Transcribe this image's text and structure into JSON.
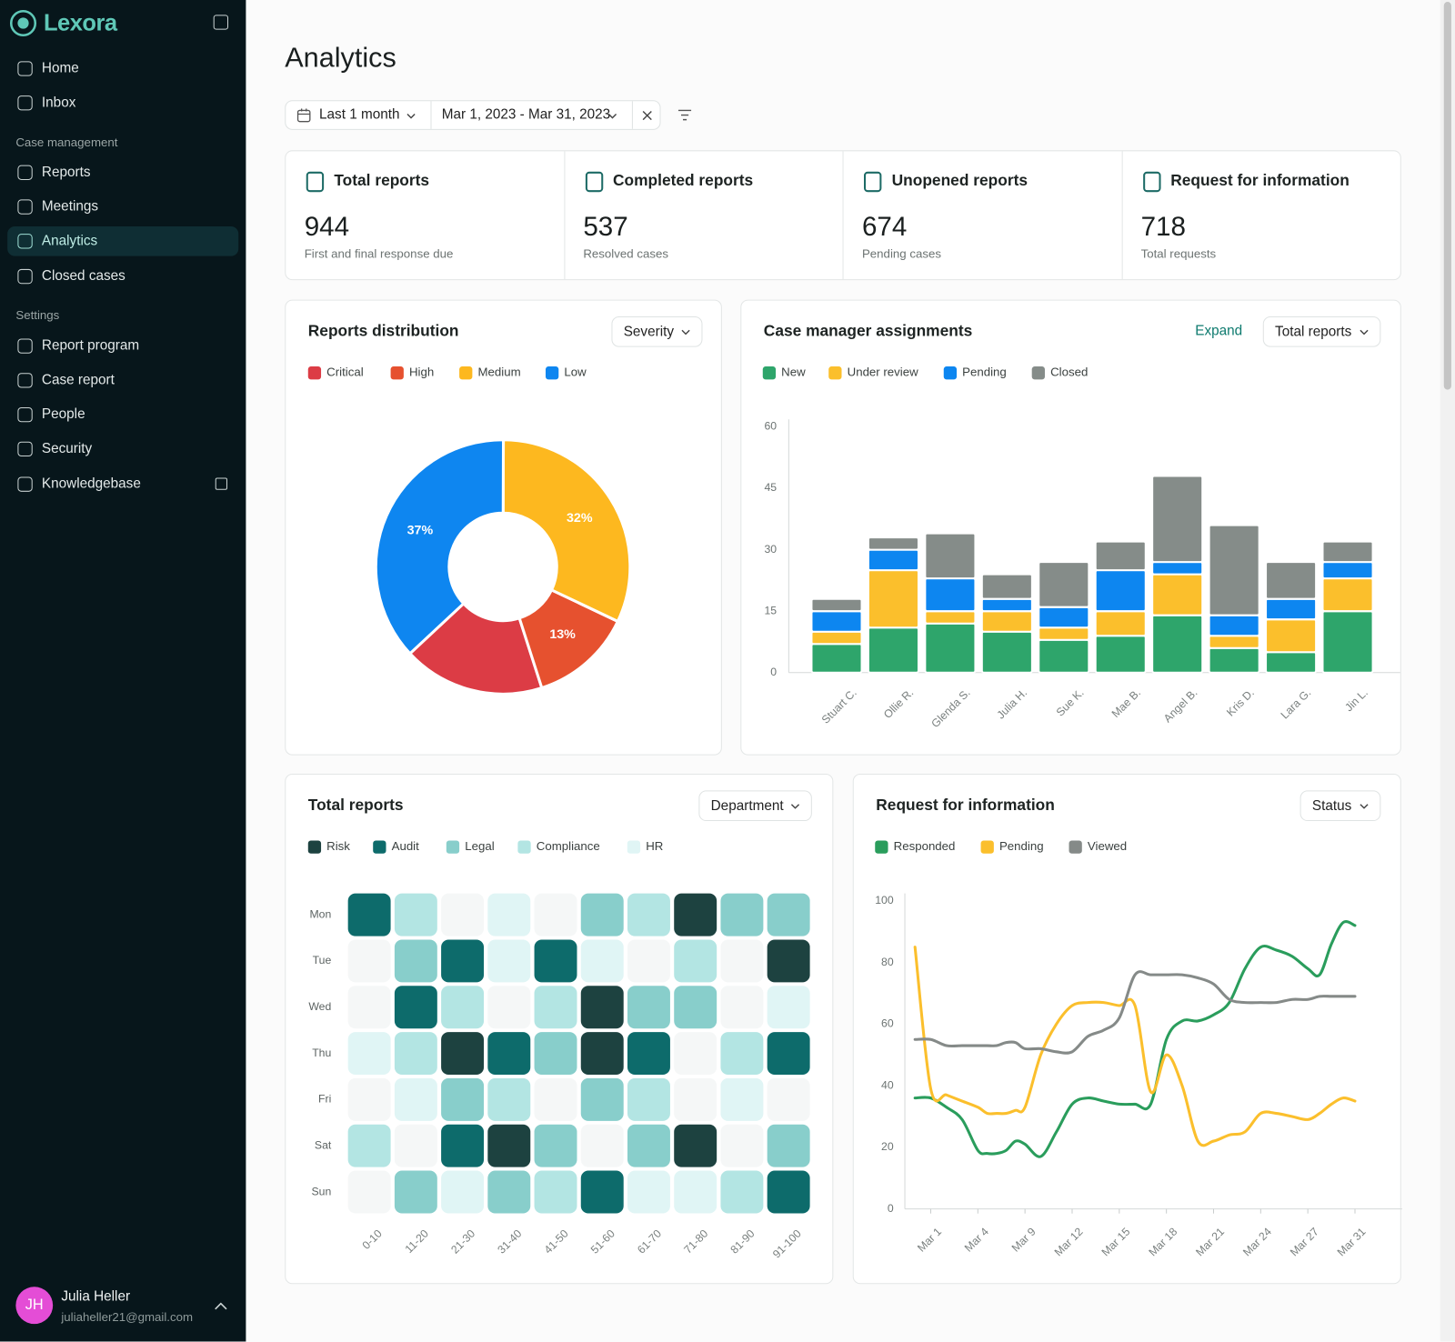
{
  "sidebar": {
    "brand": "Lexora",
    "nav": [
      "Home",
      "Inbox"
    ],
    "sections": [
      {
        "title": "Case management",
        "items": [
          "Reports",
          "Meetings",
          "Analytics",
          "Closed cases"
        ]
      },
      {
        "title": "Settings",
        "items": [
          "Report program",
          "Case report",
          "People",
          "Security",
          "Knowledgebase"
        ]
      }
    ],
    "active_item": "Analytics"
  },
  "user": {
    "initials": "JH",
    "name": "Julia Heller",
    "email": "juliaheller21@gmail.com"
  },
  "header": {
    "title": "Analytics",
    "period": "Last 1 month",
    "date_range": "Mar 1, 2023 - Mar 31, 2023"
  },
  "stats": [
    {
      "label": "Total reports",
      "value": 944,
      "caption": "First and final response due"
    },
    {
      "label": "Completed reports",
      "value": 537,
      "caption": "Resolved cases"
    },
    {
      "label": "Unopened reports",
      "value": 674,
      "caption": "Pending cases"
    },
    {
      "label": "Request for information",
      "value": 718,
      "caption": "Total requests"
    }
  ],
  "chart_data": [
    {
      "type": "pie",
      "title": "Reports distribution",
      "control": "Severity",
      "donut": true,
      "categories": [
        "Critical",
        "High",
        "Medium",
        "Low"
      ],
      "values": [
        18,
        13,
        32,
        37
      ],
      "value_labels": [
        null,
        "13%",
        "32%",
        "37%"
      ],
      "colors": [
        "#dc3c45",
        "#e6512f",
        "#fdb81f",
        "#0e86f0"
      ]
    },
    {
      "type": "bar",
      "stacked": true,
      "title": "Case manager assignments",
      "link": "Expand",
      "control": "Total reports",
      "categories": [
        "Stuart C.",
        "Ollie R.",
        "Glenda S.",
        "Julia H.",
        "Sue K.",
        "Mae B.",
        "Angel B.",
        "Kris D.",
        "Lara G.",
        "Jin L."
      ],
      "series": [
        {
          "name": "New",
          "color": "#2ea56b",
          "values": [
            7,
            11,
            12,
            10,
            8,
            9,
            14,
            6,
            5,
            15
          ]
        },
        {
          "name": "Under review",
          "color": "#fbbf2c",
          "values": [
            3,
            14,
            3,
            5,
            3,
            6,
            10,
            3,
            8,
            8
          ]
        },
        {
          "name": "Pending",
          "color": "#0d86f0",
          "values": [
            5,
            5,
            8,
            3,
            5,
            10,
            3,
            5,
            5,
            4
          ]
        },
        {
          "name": "Closed",
          "color": "#858c89",
          "values": [
            3,
            3,
            11,
            6,
            11,
            7,
            21,
            22,
            9,
            5
          ]
        }
      ],
      "ylim": [
        0,
        60
      ],
      "yticks": [
        0,
        15,
        30,
        45,
        60
      ]
    },
    {
      "type": "heatmap",
      "title": "Total reports",
      "control": "Department",
      "rows": [
        "Mon",
        "Tue",
        "Wed",
        "Thu",
        "Fri",
        "Sat",
        "Sun"
      ],
      "columns": [
        "0-10",
        "11-20",
        "21-30",
        "31-40",
        "41-50",
        "51-60",
        "61-70",
        "71-80",
        "81-90",
        "91-100"
      ],
      "values": [
        [
          4,
          2,
          0,
          1,
          0,
          3,
          2,
          5,
          3,
          3
        ],
        [
          0,
          3,
          4,
          1,
          4,
          1,
          0,
          2,
          0,
          5
        ],
        [
          0,
          4,
          2,
          0,
          2,
          5,
          3,
          3,
          0,
          1
        ],
        [
          1,
          2,
          5,
          4,
          3,
          5,
          4,
          0,
          2,
          4
        ],
        [
          0,
          1,
          3,
          2,
          0,
          3,
          2,
          0,
          1,
          0
        ],
        [
          2,
          0,
          4,
          5,
          3,
          0,
          3,
          5,
          0,
          3
        ],
        [
          0,
          3,
          1,
          3,
          2,
          4,
          1,
          1,
          2,
          4
        ]
      ],
      "levels": [
        {
          "name": "Risk",
          "value": 5,
          "color": "#1d4240"
        },
        {
          "name": "Audit",
          "value": 4,
          "color": "#0d6b6b"
        },
        {
          "name": "Legal",
          "value": 3,
          "color": "#88cecb"
        },
        {
          "name": "Compliance",
          "value": 2,
          "color": "#b3e5e3"
        },
        {
          "name": "HR",
          "value": 1,
          "color": "#e0f5f5"
        }
      ],
      "empty_color": "#f5f7f7"
    },
    {
      "type": "line",
      "title": "Request for information",
      "control": "Status",
      "x": [
        0,
        1,
        2,
        3,
        4,
        5,
        6,
        7,
        8,
        9,
        10,
        11,
        12,
        13,
        14,
        15,
        16,
        17,
        18,
        19,
        20,
        21,
        22,
        23,
        24,
        25,
        26,
        27,
        28,
        29,
        30,
        31
      ],
      "xlim": [
        -1,
        35
      ],
      "xticks": [
        {
          "value": 1,
          "label": "Mar 1"
        },
        {
          "value": 4,
          "label": "Mar 4"
        },
        {
          "value": 9,
          "label": "Mar 9"
        },
        {
          "value": 12,
          "label": "Mar 12"
        },
        {
          "value": 15,
          "label": "Mar 15"
        },
        {
          "value": 18,
          "label": "Mar 18"
        },
        {
          "value": 21,
          "label": "Mar 21"
        },
        {
          "value": 24,
          "label": "Mar 24"
        },
        {
          "value": 27,
          "label": "Mar 27"
        },
        {
          "value": 31,
          "label": "Mar 31"
        }
      ],
      "series": [
        {
          "name": "Responded",
          "color": "#2a9d5c",
          "values": [
            36,
            36,
            33,
            29,
            19,
            18,
            18,
            19,
            22,
            21,
            17,
            25,
            34,
            36,
            35,
            34,
            34,
            34,
            55,
            61,
            61,
            63,
            67,
            78,
            85,
            84,
            82,
            78,
            76,
            86,
            93,
            92
          ]
        },
        {
          "name": "Pending",
          "color": "#fbbf2c",
          "values": [
            85,
            39,
            37,
            35,
            33,
            31,
            31,
            31,
            32,
            33,
            50,
            60,
            66,
            67,
            67,
            66,
            66,
            38,
            50,
            40,
            22,
            22,
            24,
            25,
            31,
            31,
            30,
            29,
            31,
            34,
            36,
            35
          ]
        },
        {
          "name": "Viewed",
          "color": "#858a88",
          "values": [
            55,
            55,
            53,
            53,
            53,
            53,
            53,
            54,
            54,
            52,
            52,
            51,
            51,
            56,
            58,
            62,
            76,
            76,
            76,
            76,
            75,
            73,
            68,
            67,
            67,
            67,
            68,
            68,
            69,
            69,
            69,
            69
          ]
        }
      ],
      "ylim": [
        0,
        100
      ],
      "yticks": [
        0,
        20,
        40,
        60,
        80,
        100
      ]
    }
  ]
}
